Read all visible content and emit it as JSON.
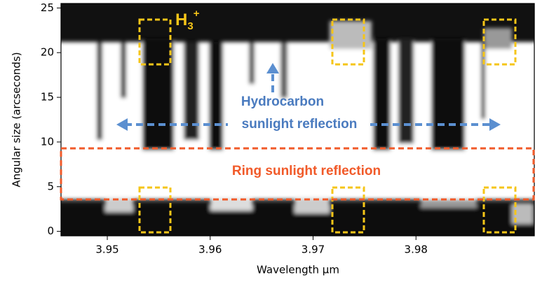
{
  "chart_data": {
    "type": "image",
    "x_label": "Wavelength μm",
    "y_label": "Angular size (arcseconds)",
    "xlim": [
      3.9455,
      3.9915
    ],
    "xticks": [
      3.95,
      3.96,
      3.97,
      3.98
    ],
    "ylim": [
      -0.5,
      25.5
    ],
    "yticks": [
      0,
      5,
      10,
      15,
      20,
      25
    ],
    "annotations": {
      "h3": {
        "base": "H",
        "sub": "3",
        "sup": "+"
      },
      "hydrocarbon": [
        "Hydrocarbon",
        "sunlight reflection"
      ],
      "ring": "Ring sunlight reflection"
    }
  }
}
